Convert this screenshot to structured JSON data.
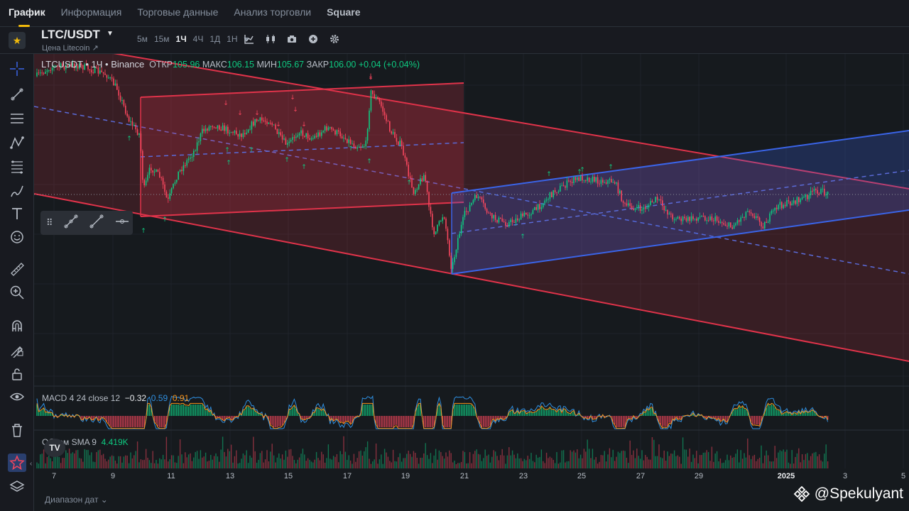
{
  "tabs": [
    {
      "label": "График",
      "active": true
    },
    {
      "label": "Информация"
    },
    {
      "label": "Торговые данные"
    },
    {
      "label": "Анализ торговли"
    },
    {
      "label": "Square"
    }
  ],
  "header": {
    "symbol": "LTC/USDT",
    "subtitle": "Цена Litecoin ↗",
    "intervals": [
      "5м",
      "15м",
      "1Ч",
      "4Ч",
      "1Д",
      "1Н"
    ],
    "active_interval": "1Ч"
  },
  "legend": {
    "symbol": "LTCUSDT • 1Ч • Binance",
    "open_label": "ОТКР",
    "open": "105.96",
    "high_label": "МАКС",
    "high": "106.15",
    "low_label": "МИН",
    "low": "105.67",
    "close_label": "ЗАКР",
    "close": "106.00",
    "change": "+0.04 (+0.04%)"
  },
  "macd": {
    "label": "MACD 4 24 close 12",
    "v1": "−0.32",
    "v2": "0.59",
    "v3": "0.91"
  },
  "volume": {
    "label": "Объем SMA 9",
    "value": "4.419K"
  },
  "xaxis": [
    "7",
    "9",
    "11",
    "13",
    "15",
    "17",
    "19",
    "21",
    "23",
    "25",
    "27",
    "29",
    "2025",
    "3",
    "5"
  ],
  "date_range": "Диапазон дат ⌄",
  "watermark": "@Spekulyant",
  "colors": {
    "up": "#0ecb81",
    "down": "#f6465d",
    "accent": "#f0b90b",
    "red_channel": "#e0334a",
    "blue_channel": "#3a64e8"
  }
}
